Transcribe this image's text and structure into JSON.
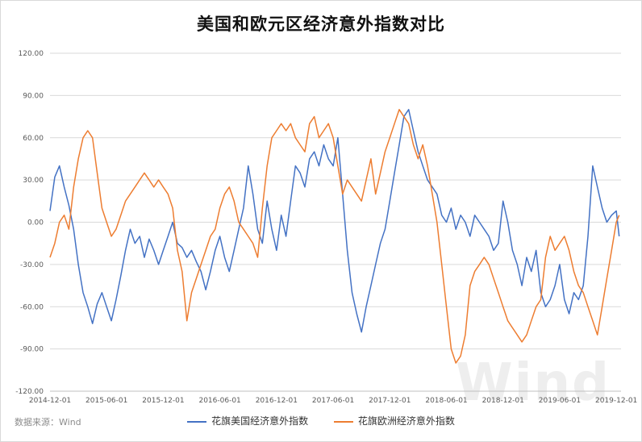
{
  "chart_data": {
    "type": "line",
    "title": "美国和欧元区经济意外指数对比",
    "source": "数据来源：Wind",
    "watermark": "Wind",
    "ylim": [
      -120,
      120
    ],
    "yticks": [
      "120.00",
      "90.00",
      "60.00",
      "30.00",
      "0.00",
      "-30.00",
      "-60.00",
      "-90.00",
      "-120.00"
    ],
    "ytick_values": [
      120,
      90,
      60,
      30,
      0,
      -30,
      -60,
      -90,
      -120
    ],
    "xticks": [
      "2014-12-01",
      "2015-06-01",
      "2015-12-01",
      "2016-06-01",
      "2016-12-01",
      "2017-06-01",
      "2017-12-01",
      "2018-06-01",
      "2018-12-01",
      "2019-06-01",
      "2019-12-01"
    ],
    "xlim_months": [
      0,
      60.5
    ],
    "grid": true,
    "legend_position": "bottom",
    "series": [
      {
        "name": "花旗美国经济意外指数",
        "color": "#4472c4",
        "x": [
          0,
          0.5,
          1,
          1.5,
          2,
          2.5,
          3,
          3.5,
          4,
          4.5,
          5,
          5.5,
          6,
          6.5,
          7,
          7.5,
          8,
          8.5,
          9,
          9.5,
          10,
          10.5,
          11,
          11.5,
          12,
          12.5,
          13,
          13.5,
          14,
          14.5,
          15,
          15.5,
          16,
          16.5,
          17,
          17.5,
          18,
          18.5,
          19,
          19.5,
          20,
          20.5,
          21,
          21.5,
          22,
          22.5,
          23,
          23.5,
          24,
          24.5,
          25,
          25.5,
          26,
          26.5,
          27,
          27.5,
          28,
          28.5,
          29,
          29.5,
          30,
          30.5,
          31,
          31.5,
          32,
          32.5,
          33,
          33.5,
          34,
          34.5,
          35,
          35.5,
          36,
          36.5,
          37,
          37.5,
          38,
          38.5,
          39,
          39.5,
          40,
          40.5,
          41,
          41.5,
          42,
          42.5,
          43,
          43.5,
          44,
          44.5,
          45,
          45.5,
          46,
          46.5,
          47,
          47.5,
          48,
          48.5,
          49,
          49.5,
          50,
          50.5,
          51,
          51.5,
          52,
          52.5,
          53,
          53.5,
          54,
          54.5,
          55,
          55.5,
          56,
          56.5,
          57,
          57.5,
          58,
          58.5,
          59,
          59.5,
          60,
          60.3
        ],
        "values": [
          8,
          32,
          40,
          25,
          12,
          -5,
          -30,
          -50,
          -60,
          -72,
          -58,
          -50,
          -60,
          -70,
          -55,
          -38,
          -20,
          -5,
          -15,
          -10,
          -25,
          -12,
          -20,
          -30,
          -20,
          -10,
          0,
          -15,
          -18,
          -25,
          -20,
          -28,
          -35,
          -48,
          -35,
          -20,
          -10,
          -25,
          -35,
          -20,
          -5,
          10,
          40,
          20,
          -5,
          -15,
          15,
          -5,
          -20,
          5,
          -10,
          15,
          40,
          35,
          25,
          45,
          50,
          40,
          55,
          45,
          40,
          60,
          20,
          -20,
          -50,
          -65,
          -78,
          -60,
          -45,
          -30,
          -15,
          -5,
          15,
          35,
          55,
          75,
          80,
          65,
          50,
          40,
          30,
          25,
          20,
          5,
          0,
          10,
          -5,
          5,
          0,
          -10,
          5,
          0,
          -5,
          -10,
          -20,
          -15,
          15,
          0,
          -20,
          -30,
          -45,
          -25,
          -35,
          -20,
          -50,
          -60,
          -55,
          -45,
          -30,
          -55,
          -65,
          -50,
          -55,
          -45,
          -10,
          40,
          25,
          10,
          0,
          5,
          8,
          -10
        ],
        "legend_label": "花旗美国经济意外指数"
      },
      {
        "name": "花旗欧洲经济意外指数",
        "color": "#ed7d31",
        "x": [
          0,
          0.5,
          1,
          1.5,
          2,
          2.5,
          3,
          3.5,
          4,
          4.5,
          5,
          5.5,
          6,
          6.5,
          7,
          7.5,
          8,
          8.5,
          9,
          9.5,
          10,
          10.5,
          11,
          11.5,
          12,
          12.5,
          13,
          13.5,
          14,
          14.5,
          15,
          15.5,
          16,
          16.5,
          17,
          17.5,
          18,
          18.5,
          19,
          19.5,
          20,
          20.5,
          21,
          21.5,
          22,
          22.5,
          23,
          23.5,
          24,
          24.5,
          25,
          25.5,
          26,
          26.5,
          27,
          27.5,
          28,
          28.5,
          29,
          29.5,
          30,
          30.5,
          31,
          31.5,
          32,
          32.5,
          33,
          33.5,
          34,
          34.5,
          35,
          35.5,
          36,
          36.5,
          37,
          37.5,
          38,
          38.5,
          39,
          39.5,
          40,
          40.5,
          41,
          41.5,
          42,
          42.5,
          43,
          43.5,
          44,
          44.5,
          45,
          45.5,
          46,
          46.5,
          47,
          47.5,
          48,
          48.5,
          49,
          49.5,
          50,
          50.5,
          51,
          51.5,
          52,
          52.5,
          53,
          53.5,
          54,
          54.5,
          55,
          55.5,
          56,
          56.5,
          57,
          57.5,
          58,
          58.5,
          59,
          59.5,
          60,
          60.3
        ],
        "values": [
          -25,
          -15,
          0,
          5,
          -5,
          25,
          45,
          60,
          65,
          60,
          35,
          10,
          0,
          -10,
          -5,
          5,
          15,
          20,
          25,
          30,
          35,
          30,
          25,
          30,
          25,
          20,
          10,
          -20,
          -35,
          -70,
          -50,
          -40,
          -30,
          -20,
          -10,
          -5,
          10,
          20,
          25,
          15,
          0,
          -5,
          -10,
          -15,
          -25,
          10,
          40,
          60,
          65,
          70,
          65,
          70,
          60,
          55,
          50,
          70,
          75,
          60,
          65,
          70,
          60,
          40,
          20,
          30,
          25,
          20,
          15,
          30,
          45,
          20,
          35,
          50,
          60,
          70,
          80,
          75,
          70,
          55,
          45,
          55,
          40,
          20,
          0,
          -30,
          -60,
          -90,
          -100,
          -95,
          -80,
          -45,
          -35,
          -30,
          -25,
          -30,
          -40,
          -50,
          -60,
          -70,
          -75,
          -80,
          -85,
          -80,
          -70,
          -60,
          -55,
          -25,
          -10,
          -20,
          -15,
          -10,
          -20,
          -35,
          -45,
          -50,
          -60,
          -70,
          -80,
          -60,
          -40,
          -20,
          0,
          5
        ],
        "legend_label": "花旗欧洲经济意外指数"
      }
    ]
  }
}
